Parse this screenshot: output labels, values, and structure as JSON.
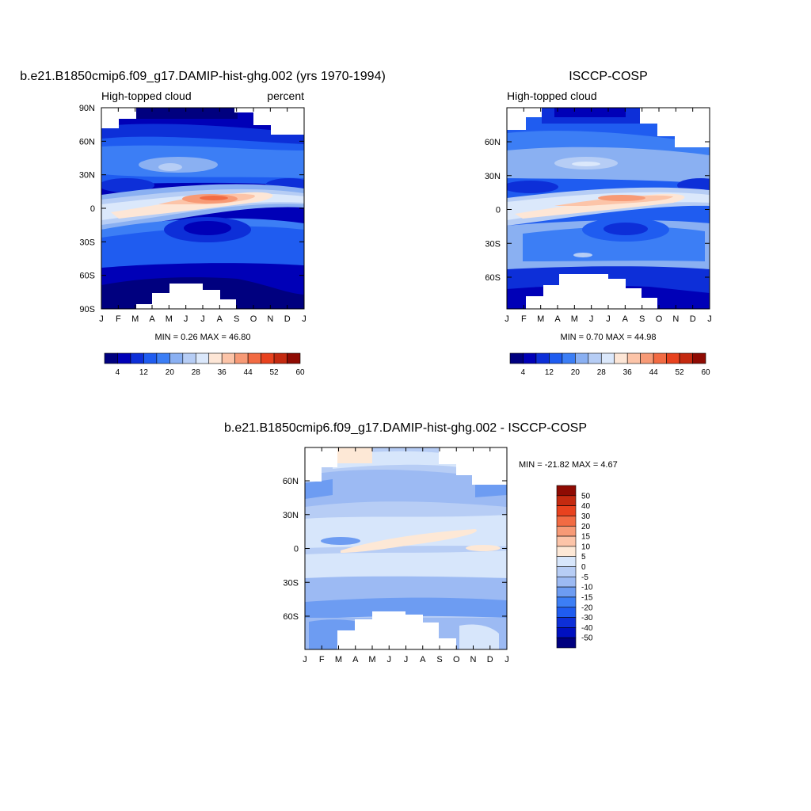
{
  "panel1": {
    "title": "b.e21.B1850cmip6.f09_g17.DAMIP-hist-ghg.002 (yrs 1970-1994)",
    "left_label": "High-topped cloud",
    "right_label": "percent",
    "stats": "MIN =   0.26 MAX =  46.80"
  },
  "panel2": {
    "title": "ISCCP-COSP",
    "left_label": "High-topped cloud",
    "stats": "MIN =   0.70 MAX =  44.98"
  },
  "panel3": {
    "title": "b.e21.B1850cmip6.f09_g17.DAMIP-hist-ghg.002 - ISCCP-COSP",
    "stats": "MIN = -21.82 MAX =   4.67"
  },
  "chart_data": [
    {
      "type": "heatmap",
      "title": "b.e21.B1850cmip6.f09_g17.DAMIP-hist-ghg.002 (yrs 1970-1994)",
      "variable": "High-topped cloud",
      "units": "percent",
      "x_tick_labels": [
        "J",
        "F",
        "M",
        "A",
        "M",
        "J",
        "J",
        "A",
        "S",
        "O",
        "N",
        "D",
        "J"
      ],
      "y_tick_labels": [
        "90N",
        "60N",
        "30N",
        "0",
        "30S",
        "60S",
        "90S"
      ],
      "ylim": [
        -90,
        90
      ],
      "colorbar_levels": [
        4,
        12,
        20,
        28,
        36,
        44,
        52,
        60
      ],
      "colors": [
        "#00007f",
        "#0000b7",
        "#0d2fd8",
        "#1f5cf0",
        "#3c7ef5",
        "#8ab0f2",
        "#b6cdf5",
        "#dbe8fb",
        "#fde6d6",
        "#fcc4a8",
        "#f79a76",
        "#f26b43",
        "#e8421e",
        "#c42a10",
        "#8f0b03"
      ],
      "min": 0.26,
      "max": 46.8
    },
    {
      "type": "heatmap",
      "title": "ISCCP-COSP",
      "variable": "High-topped cloud",
      "x_tick_labels": [
        "J",
        "F",
        "M",
        "A",
        "M",
        "J",
        "J",
        "A",
        "S",
        "O",
        "N",
        "D",
        "J"
      ],
      "y_tick_labels": [
        "60N",
        "30N",
        "0",
        "30S",
        "60S"
      ],
      "colorbar_levels": [
        4,
        12,
        20,
        28,
        36,
        44,
        52,
        60
      ],
      "min": 0.7,
      "max": 44.98
    },
    {
      "type": "heatmap",
      "title": "b.e21.B1850cmip6.f09_g17.DAMIP-hist-ghg.002 - ISCCP-COSP",
      "x_tick_labels": [
        "J",
        "F",
        "M",
        "A",
        "M",
        "J",
        "J",
        "A",
        "S",
        "O",
        "N",
        "D",
        "J"
      ],
      "y_tick_labels": [
        "60N",
        "30N",
        "0",
        "30S",
        "60S"
      ],
      "colorbar_levels": [
        "50",
        "40",
        "30",
        "20",
        "15",
        "10",
        "5",
        "0",
        "-5",
        "-10",
        "-15",
        "-20",
        "-30",
        "-40",
        "-50"
      ],
      "colors": [
        "#00007f",
        "#0010c0",
        "#0d2fd8",
        "#1f5cf0",
        "#3c7ef5",
        "#6d9cf2",
        "#9cbaf3",
        "#b7cdf5",
        "#d7e6fb",
        "#fde8d6",
        "#fcc4a8",
        "#f79a76",
        "#f26b43",
        "#e8421e",
        "#c42a10",
        "#8f0b03"
      ],
      "min": -21.82,
      "max": 4.67
    }
  ]
}
